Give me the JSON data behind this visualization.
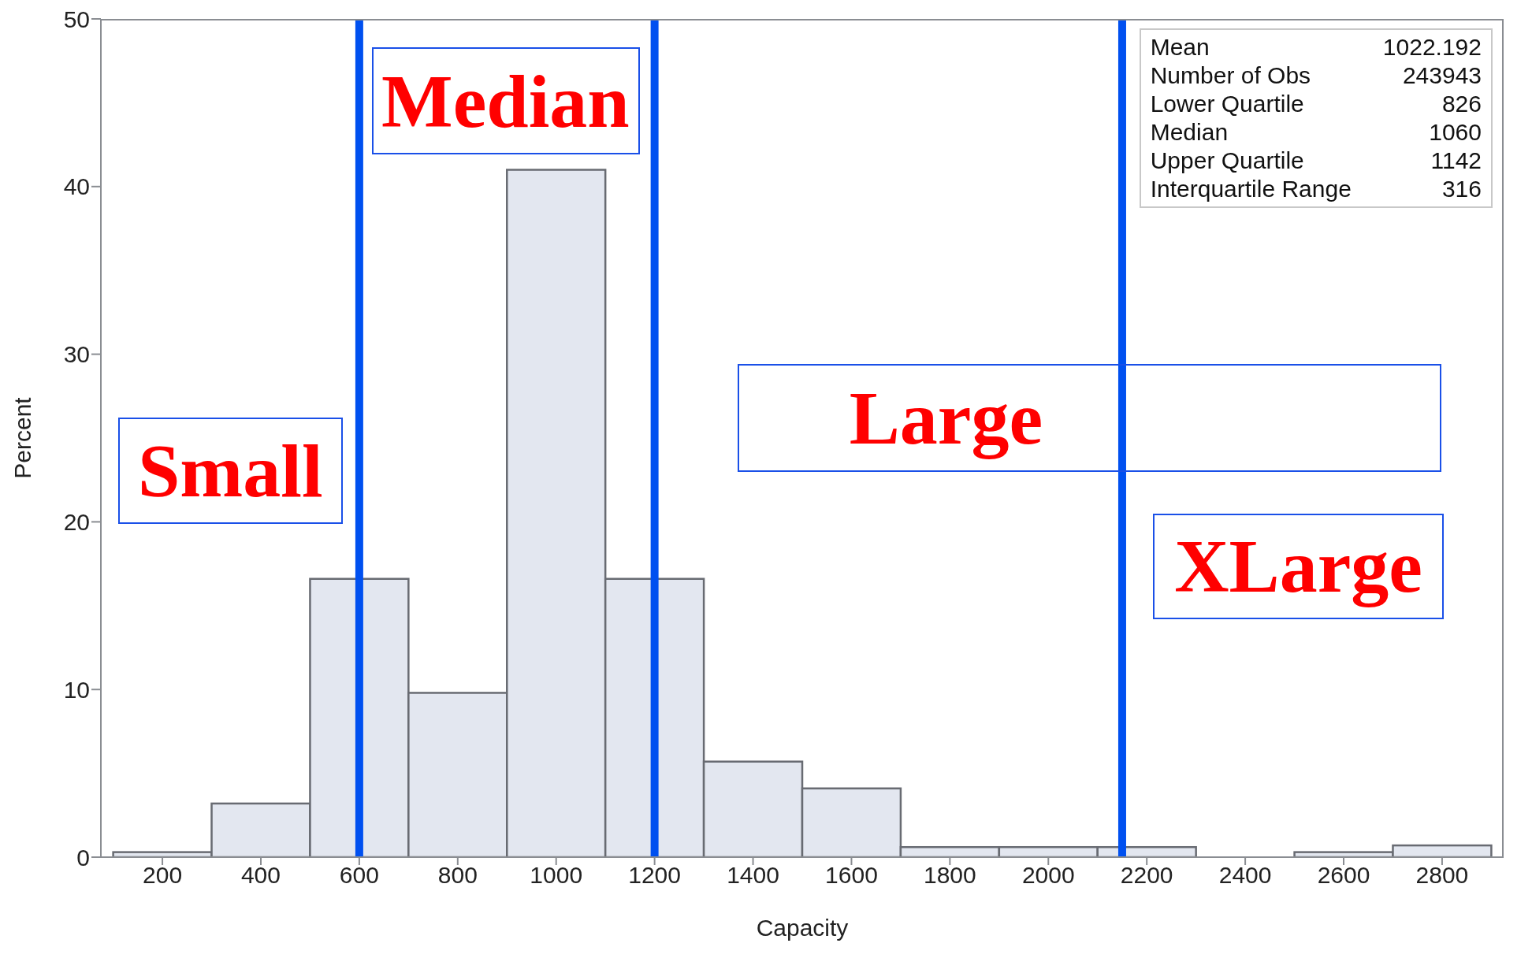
{
  "chart_data": {
    "type": "histogram",
    "xlabel": "Capacity",
    "ylabel": "Percent",
    "bins": [
      100,
      300,
      500,
      700,
      900,
      1100,
      1300,
      1500,
      1700,
      1900,
      2100,
      2300,
      2500,
      2700,
      2900
    ],
    "values": [
      0.3,
      3.2,
      16.6,
      9.8,
      41,
      16.6,
      5.7,
      4.1,
      0.6,
      0.6,
      0.6,
      0,
      0.3,
      0.7
    ],
    "color": "#e3e7f0",
    "ref_lines": [
      {
        "axis": "x",
        "value": 600,
        "color": "#0050f0"
      },
      {
        "axis": "x",
        "value": 1200,
        "color": "#0050f0"
      },
      {
        "axis": "x",
        "value": 2150,
        "color": "#0050f0"
      }
    ],
    "xlim": [
      75,
      2925
    ],
    "xticks": [
      200,
      400,
      600,
      800,
      1000,
      1200,
      1400,
      1600,
      1800,
      2000,
      2200,
      2400,
      2600,
      2800
    ],
    "ylim": [
      0,
      50
    ],
    "yticks": [
      0,
      10,
      20,
      30,
      40,
      50
    ],
    "grid": false,
    "legend": false,
    "annotations": [
      "Small",
      "Median",
      "Large",
      "XLarge",
      "Mean\t1022.192",
      "Number of Obs\t243943",
      "Lower Quartile\t826",
      "Median\t1060",
      "Upper Quartile\t1142",
      "Interquartile Range\t316"
    ]
  }
}
